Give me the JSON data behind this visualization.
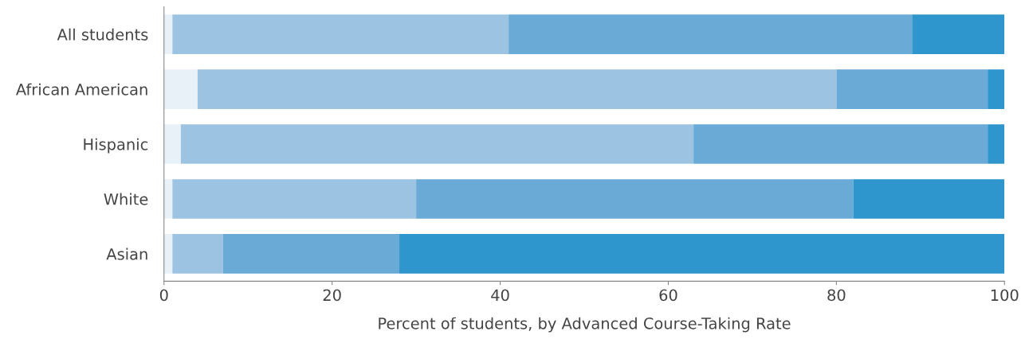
{
  "chart_data": {
    "type": "bar",
    "orientation": "horizontal",
    "stacked": true,
    "xlabel": "Percent of students, by Advanced Course-Taking Rate",
    "categories": [
      "All students",
      "African American",
      "Hispanic",
      "White",
      "Asian"
    ],
    "series": [
      {
        "color": "#e8f0f8",
        "values": [
          1,
          4,
          2,
          1,
          1
        ]
      },
      {
        "color": "#9dc3e2",
        "values": [
          40,
          76,
          61,
          29,
          6
        ]
      },
      {
        "color": "#6aaad6",
        "values": [
          48,
          18,
          35,
          52,
          21
        ]
      },
      {
        "color": "#2e96cc",
        "values": [
          11,
          2,
          2,
          18,
          72
        ]
      }
    ],
    "xlim": [
      0,
      100
    ],
    "xticks": [
      0,
      20,
      40,
      60,
      80,
      100
    ],
    "grid": false
  }
}
